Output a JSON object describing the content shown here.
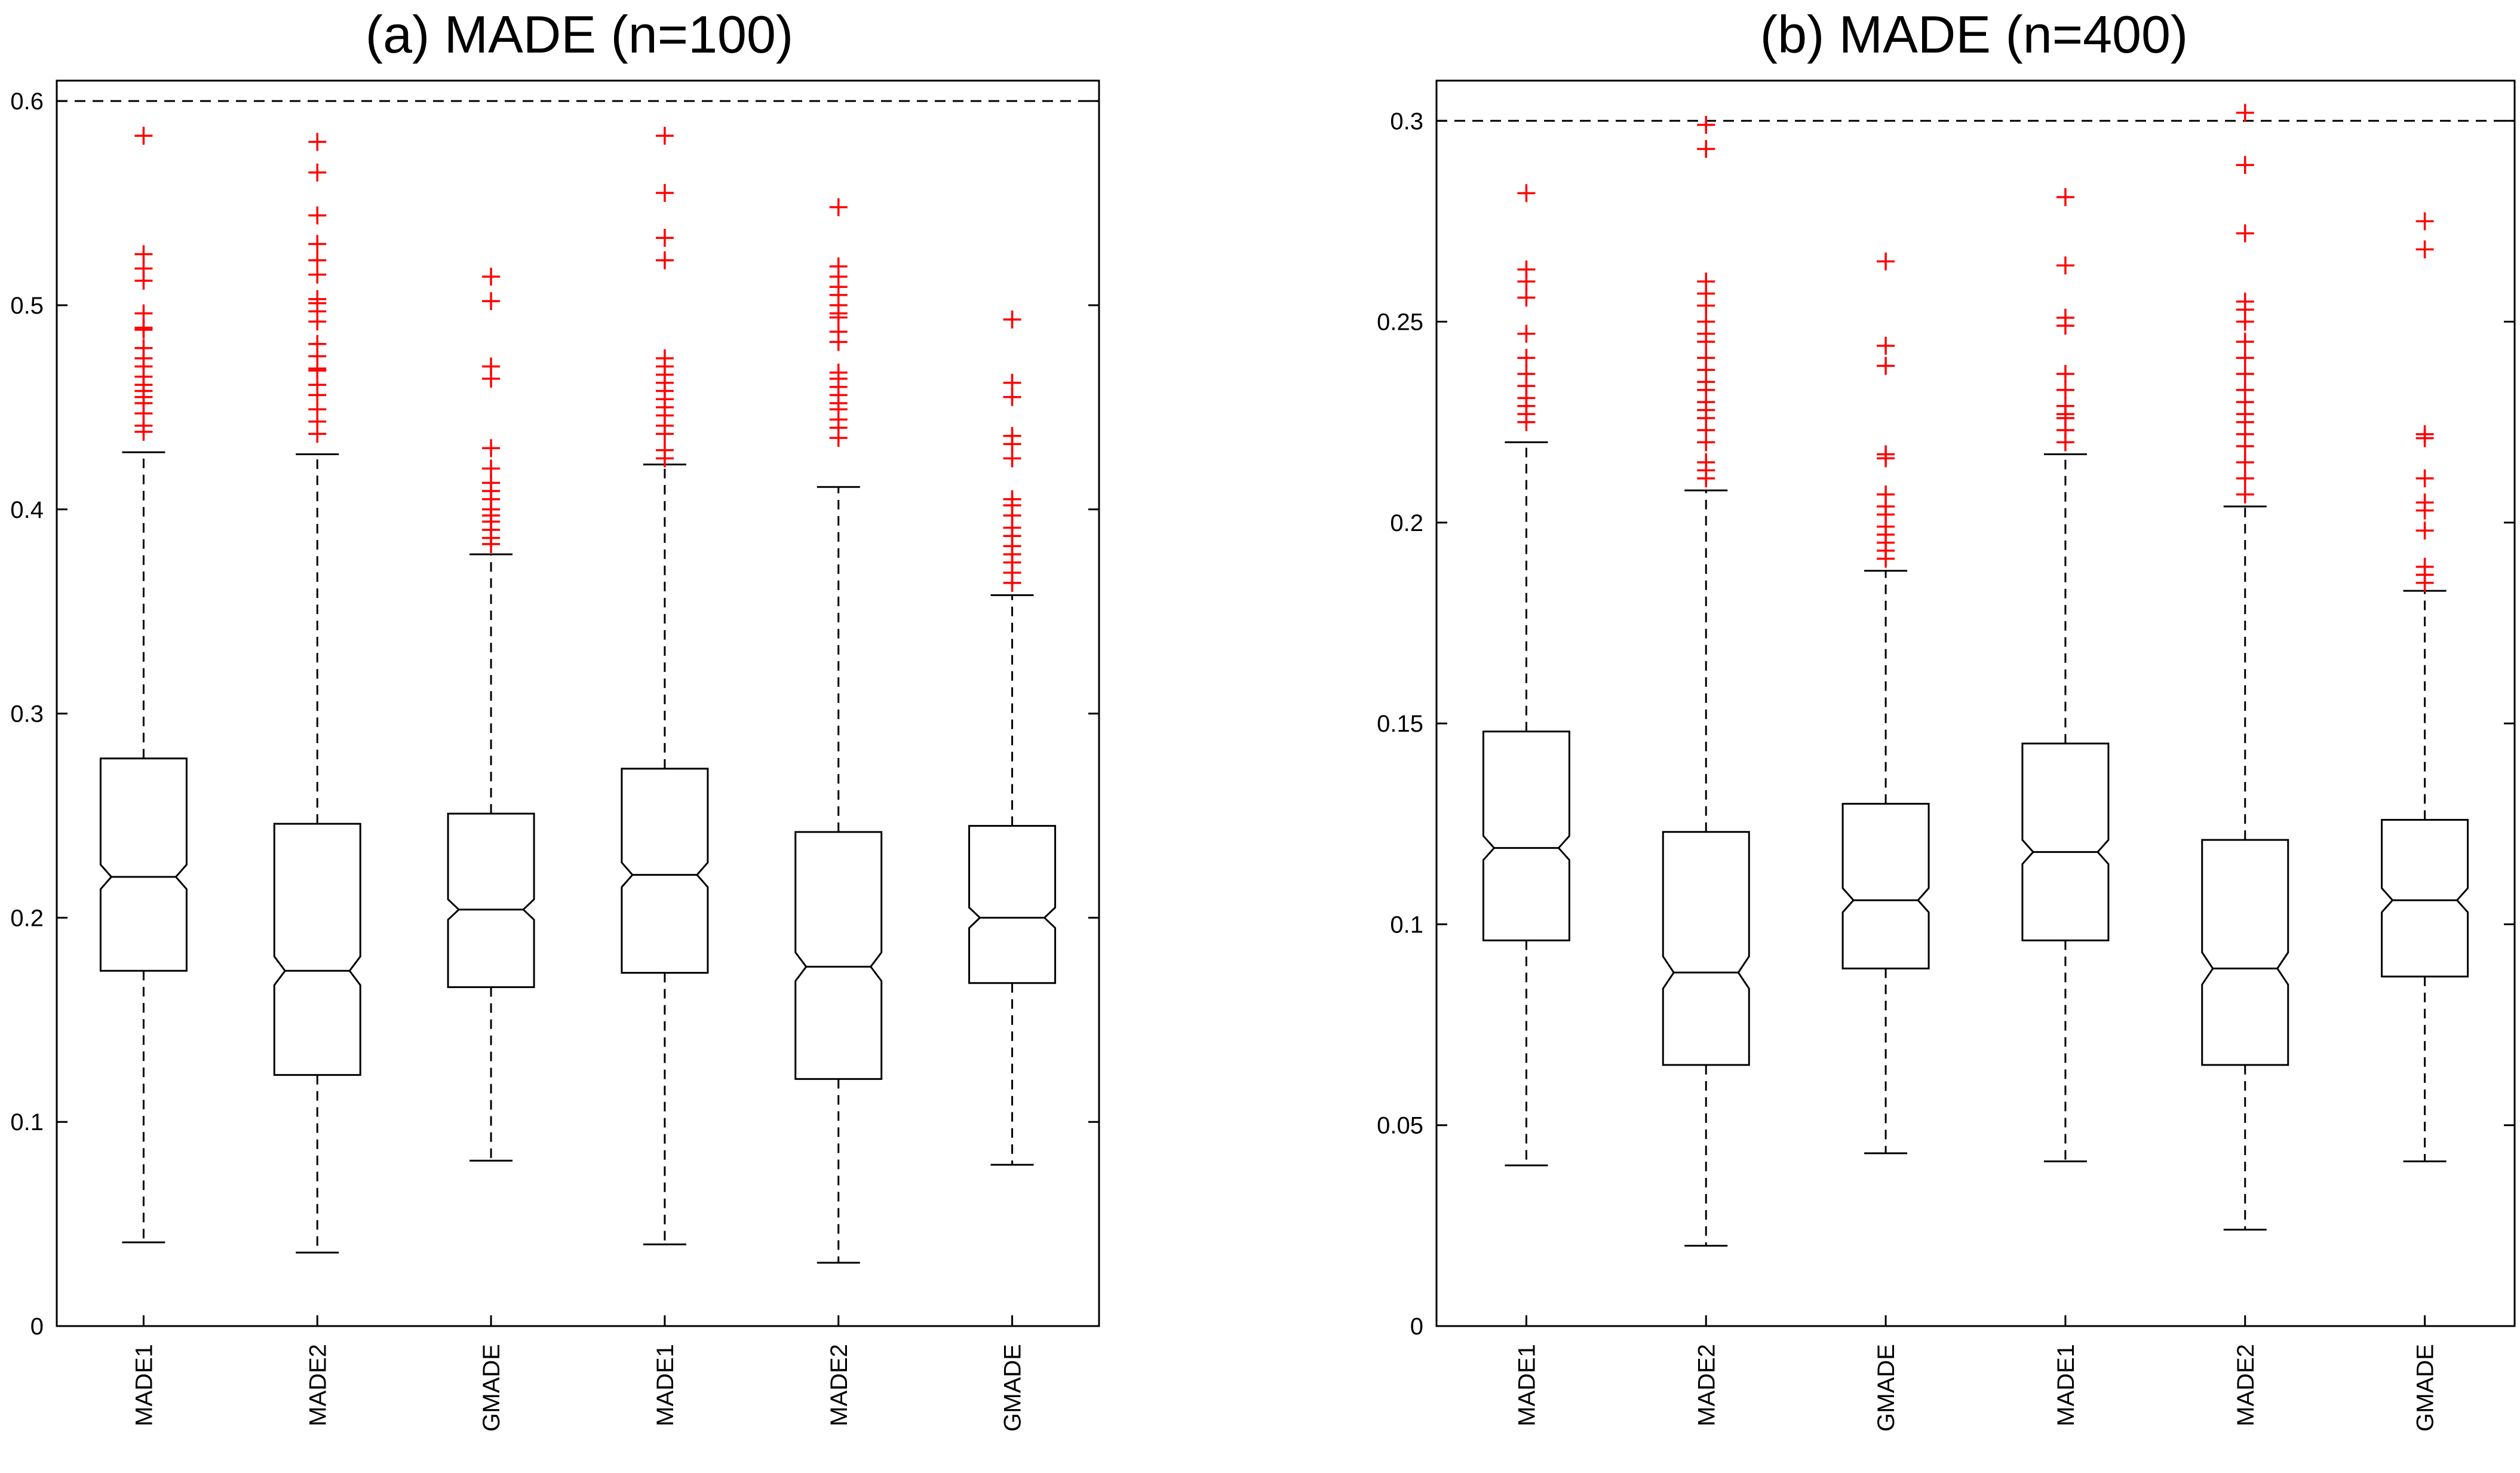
{
  "chart_data": [
    {
      "type": "boxplot",
      "title": "(a) MADE (n=100)",
      "xlabel": "",
      "ylabel": "",
      "ylim": [
        0,
        0.61
      ],
      "yticks": [
        0,
        0.1,
        0.2,
        0.3,
        0.4,
        0.5,
        0.6
      ],
      "ytick_labels": [
        "0",
        "0.1",
        "0.2",
        "0.3",
        "0.4",
        "0.5",
        "0.6"
      ],
      "reference_line": 0.6,
      "categories": [
        "MADE1",
        "MADE2",
        "GMADE",
        "MADE1",
        "MADE2",
        "GMADE"
      ],
      "boxes": [
        {
          "label": "MADE1",
          "whisker_low": 0.041,
          "q1": 0.174,
          "median": 0.22,
          "q3": 0.278,
          "whisker_high": 0.428,
          "notch_low": 0.214,
          "notch_high": 0.226,
          "outliers": [
            0.438,
            0.441,
            0.447,
            0.452,
            0.455,
            0.458,
            0.461,
            0.465,
            0.47,
            0.474,
            0.479,
            0.488,
            0.489,
            0.496,
            0.512,
            0.518,
            0.525,
            0.583
          ]
        },
        {
          "label": "MADE2",
          "whisker_low": 0.036,
          "q1": 0.123,
          "median": 0.174,
          "q3": 0.246,
          "whisker_high": 0.427,
          "notch_low": 0.167,
          "notch_high": 0.181,
          "outliers": [
            0.437,
            0.443,
            0.449,
            0.456,
            0.461,
            0.468,
            0.469,
            0.475,
            0.481,
            0.492,
            0.497,
            0.501,
            0.503,
            0.515,
            0.522,
            0.53,
            0.544,
            0.565,
            0.58
          ]
        },
        {
          "label": "GMADE",
          "whisker_low": 0.081,
          "q1": 0.166,
          "median": 0.204,
          "q3": 0.251,
          "whisker_high": 0.378,
          "notch_low": 0.199,
          "notch_high": 0.209,
          "outliers": [
            0.383,
            0.386,
            0.39,
            0.394,
            0.397,
            0.4,
            0.405,
            0.409,
            0.413,
            0.42,
            0.43,
            0.464,
            0.47,
            0.502,
            0.514
          ]
        },
        {
          "label": "MADE1",
          "whisker_low": 0.04,
          "q1": 0.173,
          "median": 0.221,
          "q3": 0.273,
          "whisker_high": 0.422,
          "notch_low": 0.215,
          "notch_high": 0.227,
          "outliers": [
            0.425,
            0.429,
            0.437,
            0.441,
            0.446,
            0.45,
            0.454,
            0.458,
            0.462,
            0.466,
            0.47,
            0.474,
            0.522,
            0.533,
            0.555,
            0.583
          ]
        },
        {
          "label": "MADE2",
          "whisker_low": 0.031,
          "q1": 0.121,
          "median": 0.176,
          "q3": 0.242,
          "whisker_high": 0.411,
          "notch_low": 0.169,
          "notch_high": 0.183,
          "outliers": [
            0.435,
            0.44,
            0.444,
            0.449,
            0.452,
            0.456,
            0.46,
            0.464,
            0.467,
            0.482,
            0.487,
            0.494,
            0.496,
            0.5,
            0.505,
            0.509,
            0.514,
            0.519,
            0.548
          ]
        },
        {
          "label": "GMADE",
          "whisker_low": 0.079,
          "q1": 0.168,
          "median": 0.2,
          "q3": 0.245,
          "whisker_high": 0.358,
          "notch_low": 0.195,
          "notch_high": 0.205,
          "outliers": [
            0.364,
            0.369,
            0.374,
            0.378,
            0.382,
            0.387,
            0.391,
            0.397,
            0.402,
            0.405,
            0.425,
            0.432,
            0.436,
            0.455,
            0.462,
            0.493
          ]
        }
      ]
    },
    {
      "type": "boxplot",
      "title": "(b) MADE (n=400)",
      "xlabel": "",
      "ylabel": "",
      "ylim": [
        0,
        0.31
      ],
      "yticks": [
        0,
        0.05,
        0.1,
        0.15,
        0.2,
        0.25,
        0.3
      ],
      "ytick_labels": [
        "0",
        "0.05",
        "0.1",
        "0.15",
        "0.2",
        "0.25",
        "0.3"
      ],
      "reference_line": 0.3,
      "categories": [
        "MADE1",
        "MADE2",
        "GMADE",
        "MADE1",
        "MADE2",
        "GMADE"
      ],
      "boxes": [
        {
          "label": "MADE1",
          "whisker_low": 0.04,
          "q1": 0.096,
          "median": 0.119,
          "q3": 0.148,
          "whisker_high": 0.22,
          "notch_low": 0.116,
          "notch_high": 0.122,
          "outliers": [
            0.225,
            0.227,
            0.229,
            0.231,
            0.234,
            0.237,
            0.241,
            0.247,
            0.256,
            0.26,
            0.263,
            0.282
          ]
        },
        {
          "label": "MADE2",
          "whisker_low": 0.02,
          "q1": 0.065,
          "median": 0.088,
          "q3": 0.123,
          "whisker_high": 0.208,
          "notch_low": 0.084,
          "notch_high": 0.092,
          "outliers": [
            0.211,
            0.213,
            0.215,
            0.22,
            0.223,
            0.226,
            0.228,
            0.23,
            0.233,
            0.235,
            0.238,
            0.241,
            0.245,
            0.247,
            0.25,
            0.254,
            0.257,
            0.26,
            0.293,
            0.299
          ]
        },
        {
          "label": "GMADE",
          "whisker_low": 0.043,
          "q1": 0.089,
          "median": 0.106,
          "q3": 0.13,
          "whisker_high": 0.188,
          "notch_low": 0.103,
          "notch_high": 0.109,
          "outliers": [
            0.191,
            0.193,
            0.195,
            0.197,
            0.199,
            0.202,
            0.204,
            0.207,
            0.216,
            0.217,
            0.239,
            0.244,
            0.265
          ]
        },
        {
          "label": "MADE1",
          "whisker_low": 0.041,
          "q1": 0.096,
          "median": 0.118,
          "q3": 0.145,
          "whisker_high": 0.217,
          "notch_low": 0.115,
          "notch_high": 0.121,
          "outliers": [
            0.22,
            0.223,
            0.226,
            0.227,
            0.229,
            0.233,
            0.237,
            0.249,
            0.251,
            0.264,
            0.281
          ]
        },
        {
          "label": "MADE2",
          "whisker_low": 0.024,
          "q1": 0.065,
          "median": 0.089,
          "q3": 0.121,
          "whisker_high": 0.204,
          "notch_low": 0.085,
          "notch_high": 0.093,
          "outliers": [
            0.207,
            0.211,
            0.215,
            0.219,
            0.222,
            0.225,
            0.227,
            0.23,
            0.233,
            0.237,
            0.241,
            0.245,
            0.25,
            0.253,
            0.255,
            0.272,
            0.289,
            0.302
          ]
        },
        {
          "label": "GMADE",
          "whisker_low": 0.041,
          "q1": 0.087,
          "median": 0.106,
          "q3": 0.126,
          "whisker_high": 0.183,
          "notch_low": 0.103,
          "notch_high": 0.109,
          "outliers": [
            0.185,
            0.187,
            0.189,
            0.198,
            0.203,
            0.205,
            0.211,
            0.221,
            0.222,
            0.268,
            0.275
          ]
        }
      ]
    }
  ]
}
